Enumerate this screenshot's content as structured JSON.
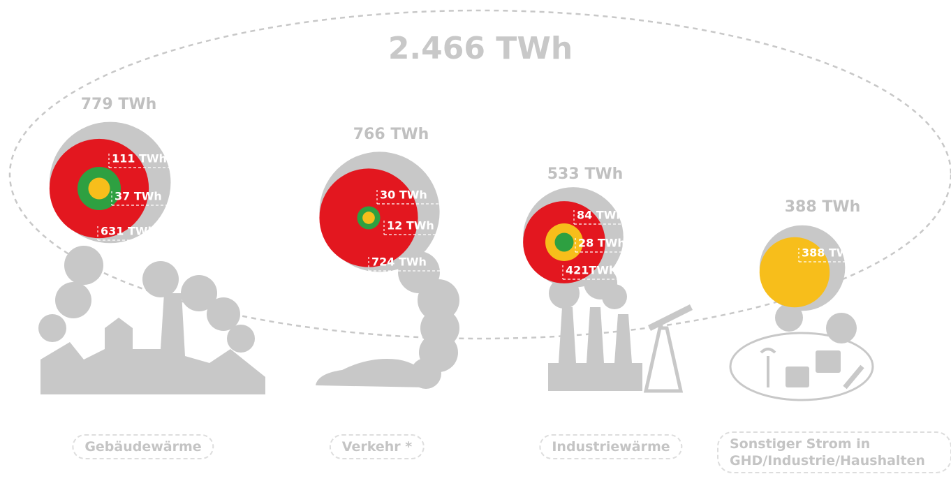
{
  "chart_data": {
    "type": "nested-circles",
    "title": "2.466 TWh",
    "groups": [
      {
        "category": "Gebäudewärme",
        "total": 779,
        "total_label": "779 TWh",
        "segments": [
          {
            "color": "#f7be1b",
            "value": 37,
            "value_label": "37 TWh"
          },
          {
            "color": "#2ea041",
            "value": 111,
            "value_label": "111 TWh"
          },
          {
            "color": "#e3171f",
            "value": 631,
            "value_label": "631 TWh"
          }
        ]
      },
      {
        "category": "Verkehr *",
        "total": 766,
        "total_label": "766 TWh",
        "segments": [
          {
            "color": "#f7be1b",
            "value": 12,
            "value_label": "12 TWh"
          },
          {
            "color": "#2ea041",
            "value": 30,
            "value_label": "30 TWh"
          },
          {
            "color": "#e3171f",
            "value": 724,
            "value_label": "724 TWh"
          }
        ]
      },
      {
        "category": "Industriewärme",
        "total": 533,
        "total_label": "533 TWh",
        "segments": [
          {
            "color": "#2ea041",
            "value": 28,
            "value_label": "28 TWh"
          },
          {
            "color": "#f7be1b",
            "value": 84,
            "value_label": "84 TWh"
          },
          {
            "color": "#e3171f",
            "value": 421,
            "value_label": "421TWh"
          }
        ]
      },
      {
        "category": "Sonstiger Strom in GHD/Industrie/Haushalten",
        "total": 388,
        "total_label": "388 TWh",
        "segments": [
          {
            "color": "#f7be1b",
            "value": 388,
            "value_label": "388 TWh"
          }
        ]
      }
    ]
  }
}
